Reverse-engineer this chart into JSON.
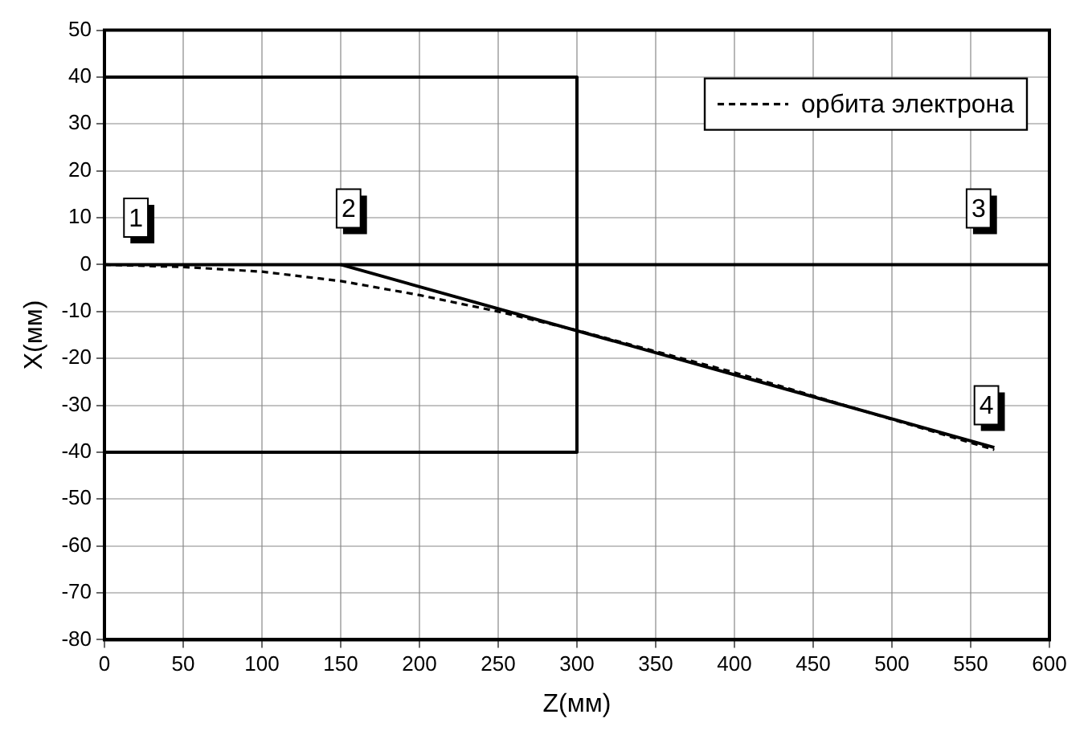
{
  "chart_data": {
    "type": "line",
    "xlabel": "Z(мм)",
    "ylabel": "X(мм)",
    "xlim": [
      0,
      600
    ],
    "xticks": [
      0,
      50,
      100,
      150,
      200,
      250,
      300,
      350,
      400,
      450,
      500,
      550,
      600
    ],
    "ylim": [
      -80,
      50
    ],
    "yticks": [
      -80,
      -70,
      -60,
      -50,
      -40,
      -30,
      -20,
      -10,
      0,
      10,
      20,
      30,
      40,
      50
    ],
    "grid": true,
    "legend": "top right",
    "marker": "none",
    "series": [
      {
        "color": "#000000",
        "line_style": "solid",
        "x": [
          0,
          300,
          300,
          0
        ],
        "values": [
          40,
          40,
          -40,
          -40
        ]
      },
      {
        "color": "#000000",
        "line_style": "solid",
        "x": [
          0,
          600
        ],
        "values": [
          0,
          0
        ]
      },
      {
        "color": "#000000",
        "line_style": "solid",
        "x": [
          150,
          565
        ],
        "values": [
          0,
          -39
        ]
      },
      {
        "name": "орбита электрона",
        "color": "#000000",
        "line_style": "dashed",
        "x": [
          0,
          50,
          100,
          150,
          200,
          250,
          300,
          350,
          400,
          450,
          500,
          565
        ],
        "values": [
          0,
          -0.5,
          -1.5,
          -3.5,
          -6.5,
          -10,
          -14,
          -18.5,
          -23,
          -28,
          -33,
          -39.5
        ]
      }
    ],
    "annotations": [
      {
        "text": "1",
        "x": 20,
        "y": 10
      },
      {
        "text": "2",
        "x": 155,
        "y": 12
      },
      {
        "text": "3",
        "x": 555,
        "y": 12
      },
      {
        "text": "4",
        "x": 560,
        "y": -30
      }
    ]
  }
}
